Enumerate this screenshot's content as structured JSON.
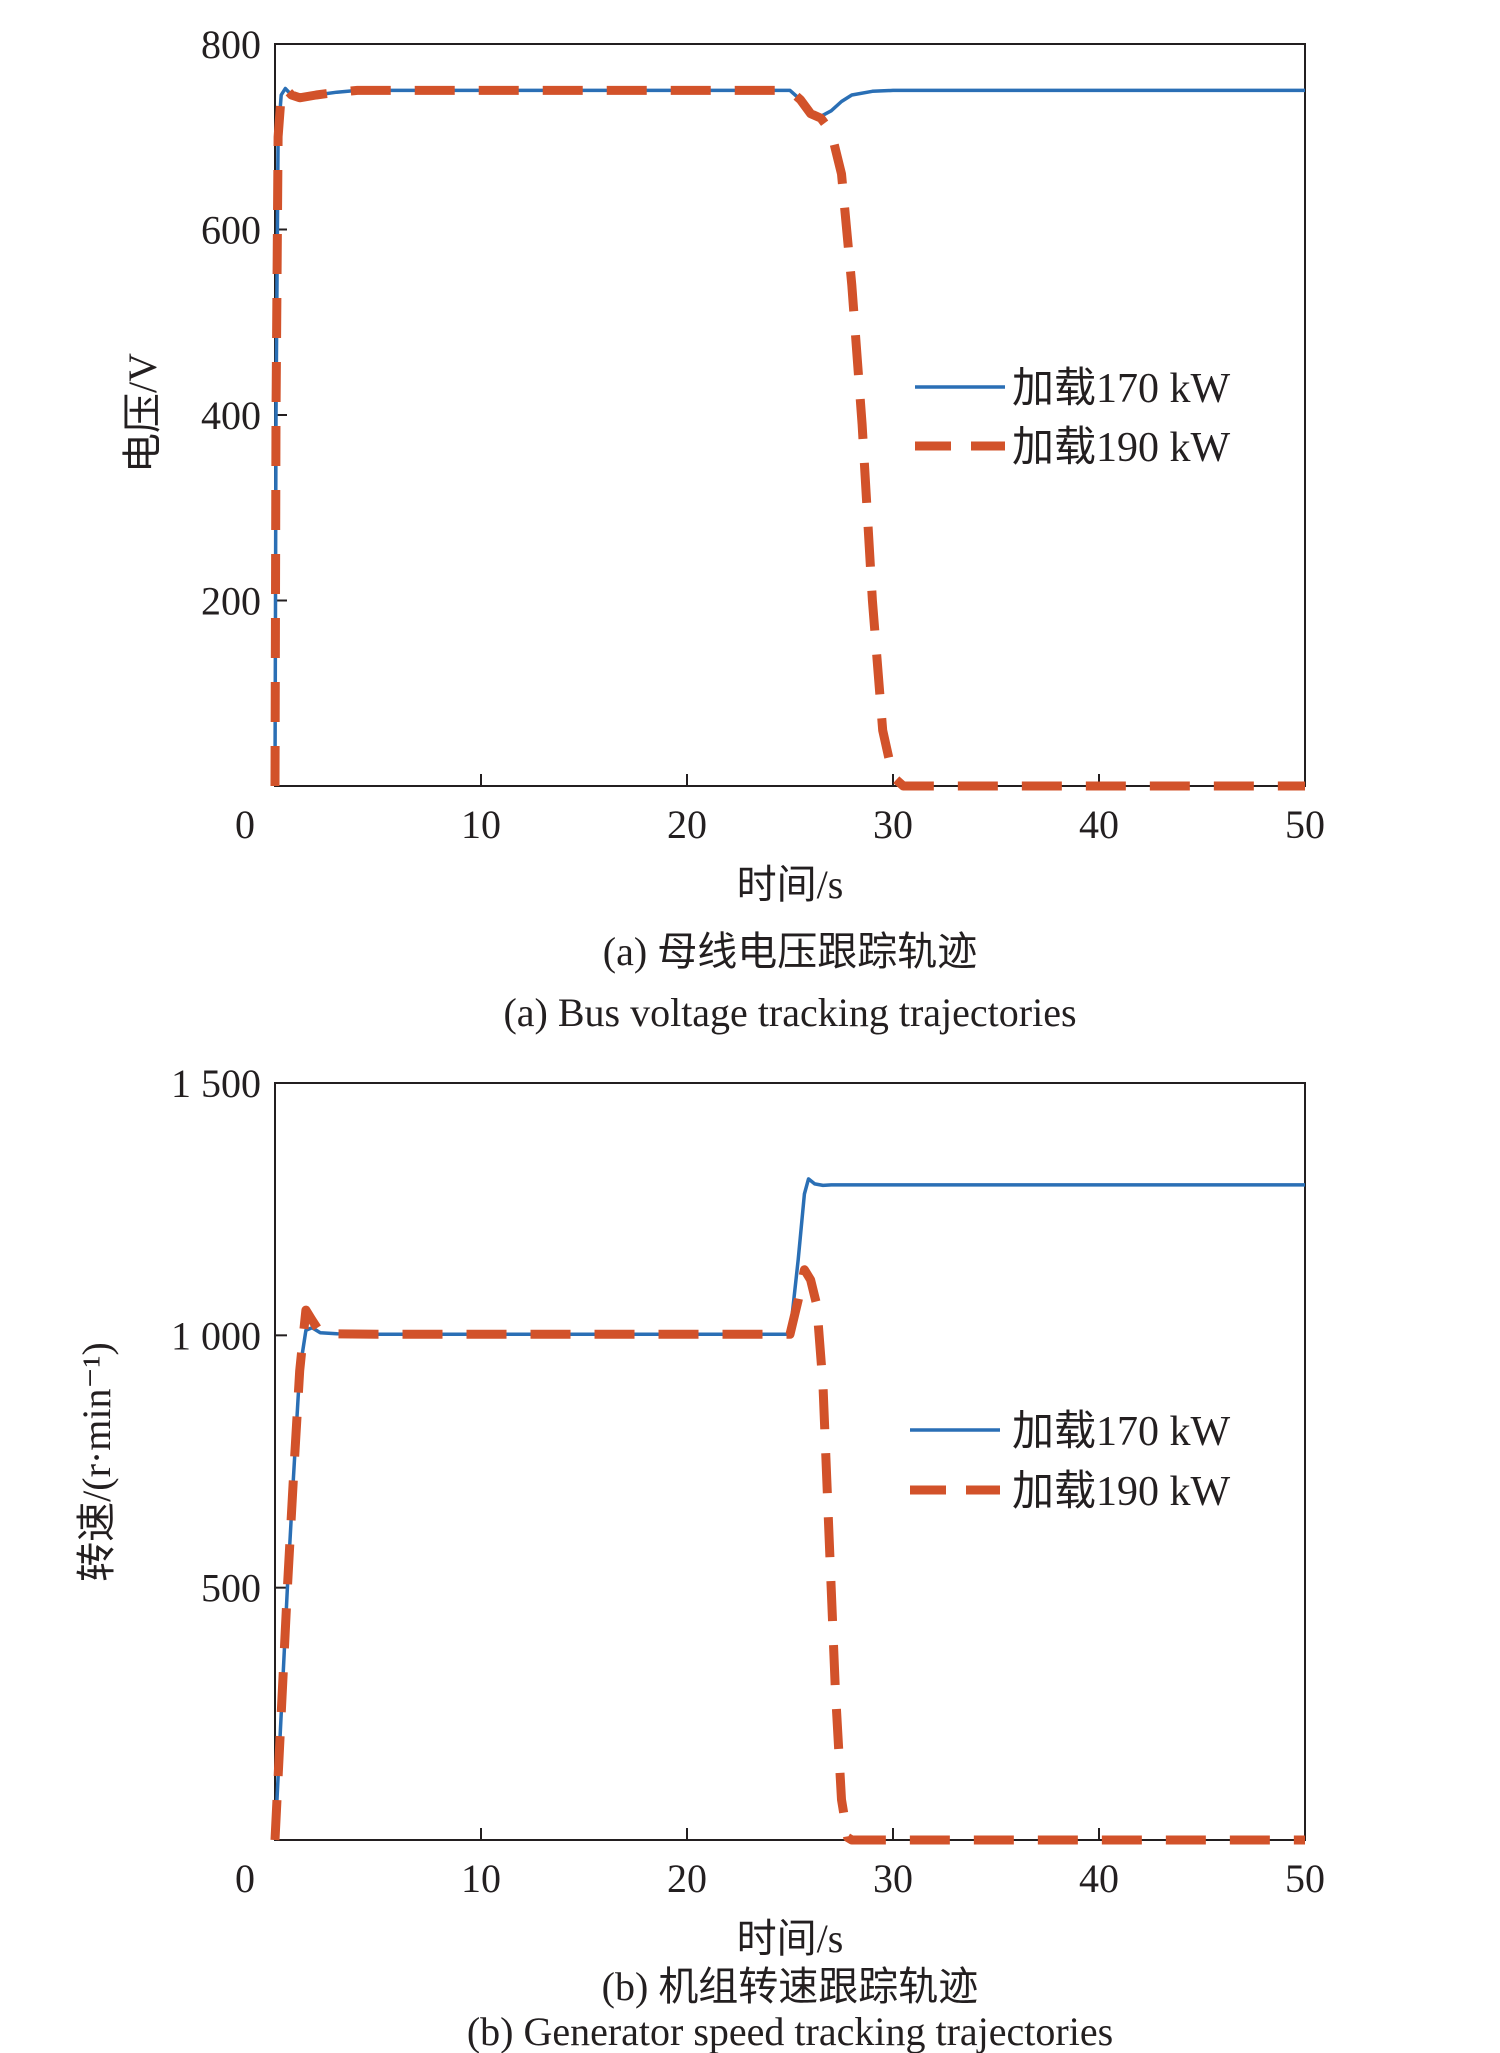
{
  "colors": {
    "series_170": "#2a6fb5",
    "series_190": "#d2522a",
    "axis": "#231f20"
  },
  "chart_data": [
    {
      "type": "line",
      "xlabel": "时间/s",
      "ylabel": "电压/V",
      "xlim": [
        0,
        50
      ],
      "ylim": [
        0,
        800
      ],
      "xticks": [
        0,
        10,
        20,
        30,
        40,
        50
      ],
      "yticks": [
        200,
        400,
        600,
        800
      ],
      "xtick_labels": [
        "0",
        "10",
        "20",
        "30",
        "40",
        "50"
      ],
      "ytick_labels": [
        "200",
        "400",
        "600",
        "800"
      ],
      "legend": "right",
      "grid": false,
      "caption_cn": "(a) 母线电压跟踪轨迹",
      "caption_en": "(a) Bus voltage tracking trajectories",
      "series": [
        {
          "name": "加载170 kW",
          "style": "solid",
          "x": [
            0,
            0.05,
            0.15,
            0.3,
            0.5,
            0.8,
            1.2,
            2,
            3,
            4,
            10,
            20,
            25,
            25.5,
            26,
            26.5,
            27,
            27.5,
            28,
            29,
            30,
            35,
            40,
            45,
            50
          ],
          "y": [
            0,
            400,
            700,
            745,
            752,
            745,
            742,
            745,
            748,
            750,
            750,
            750,
            750,
            740,
            725,
            722,
            728,
            738,
            745,
            749,
            750,
            750,
            750,
            750,
            750
          ]
        },
        {
          "name": "加载190 kW",
          "style": "dashed",
          "x": [
            0,
            0.05,
            0.15,
            0.3,
            0.5,
            0.8,
            1.2,
            2,
            3,
            4,
            10,
            20,
            25,
            25.5,
            26,
            26.5,
            27,
            27.5,
            28,
            28.5,
            29,
            29.5,
            30,
            30.5,
            31,
            35,
            40,
            45,
            50
          ],
          "y": [
            0,
            400,
            700,
            745,
            752,
            745,
            742,
            745,
            748,
            750,
            750,
            750,
            750,
            740,
            725,
            720,
            705,
            660,
            540,
            390,
            200,
            60,
            10,
            0,
            0,
            0,
            0,
            0,
            0
          ]
        }
      ]
    },
    {
      "type": "line",
      "xlabel": "时间/s",
      "ylabel": "转速/(r·min⁻¹)",
      "xlim": [
        0,
        50
      ],
      "ylim": [
        0,
        1500
      ],
      "xticks": [
        0,
        10,
        20,
        30,
        40,
        50
      ],
      "yticks": [
        500,
        1000,
        1500
      ],
      "xtick_labels": [
        "0",
        "10",
        "20",
        "30",
        "40",
        "50"
      ],
      "ytick_labels": [
        "500",
        "1 000",
        "1 500"
      ],
      "legend": "right",
      "grid": false,
      "caption_cn": "(b) 机组转速跟踪轨迹",
      "caption_en": "(b) Generator speed tracking trajectories",
      "series": [
        {
          "name": "加载170 kW",
          "style": "solid",
          "x": [
            0,
            0.3,
            0.6,
            0.9,
            1.2,
            1.5,
            1.8,
            2.2,
            3,
            5,
            10,
            20,
            25,
            25.4,
            25.7,
            25.9,
            26.2,
            26.6,
            27,
            28,
            30,
            35,
            40,
            45,
            50
          ],
          "y": [
            0,
            250,
            500,
            720,
            930,
            1010,
            1015,
            1005,
            1003,
            1002,
            1002,
            1002,
            1002,
            1150,
            1280,
            1310,
            1300,
            1297,
            1298,
            1298,
            1298,
            1298,
            1298,
            1298,
            1298
          ]
        },
        {
          "name": "加载190 kW",
          "style": "dashed",
          "x": [
            0,
            0.3,
            0.6,
            0.9,
            1.2,
            1.5,
            1.8,
            2.2,
            3,
            5,
            10,
            20,
            25,
            25.4,
            25.7,
            26,
            26.3,
            26.6,
            26.9,
            27.2,
            27.5,
            27.8,
            28,
            30,
            35,
            40,
            45,
            50
          ],
          "y": [
            0,
            250,
            500,
            720,
            930,
            1050,
            1030,
            1005,
            1003,
            1002,
            1002,
            1002,
            1002,
            1070,
            1130,
            1110,
            1060,
            900,
            600,
            300,
            80,
            5,
            0,
            0,
            0,
            0,
            0,
            0
          ]
        }
      ]
    }
  ]
}
